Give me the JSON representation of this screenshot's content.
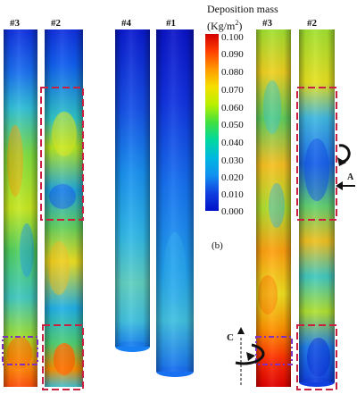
{
  "left_panel": {
    "tube_labels": [
      "#3",
      "#2",
      "#4",
      "#1"
    ]
  },
  "legend": {
    "title_main": "Deposition mass",
    "title_unit_prefix": "(Kg/m",
    "title_unit_sup": "2",
    "title_unit_suffix": ")",
    "ticks": [
      "0.100",
      "0.090",
      "0.080",
      "0.070",
      "0.060",
      "0.050",
      "0.040",
      "0.030",
      "0.020",
      "0.010",
      "0.000"
    ],
    "colors": [
      "#d40000",
      "#ff4000",
      "#ff9a00",
      "#f5e000",
      "#b8f000",
      "#40e040",
      "#00d8a0",
      "#00b8e0",
      "#1090f0",
      "#1040e0",
      "#0010c8"
    ]
  },
  "right_panel": {
    "subfigure_label": "(b)",
    "tube_labels": [
      "#3",
      "#2"
    ],
    "arrow_labels": [
      "A",
      "C"
    ]
  }
}
